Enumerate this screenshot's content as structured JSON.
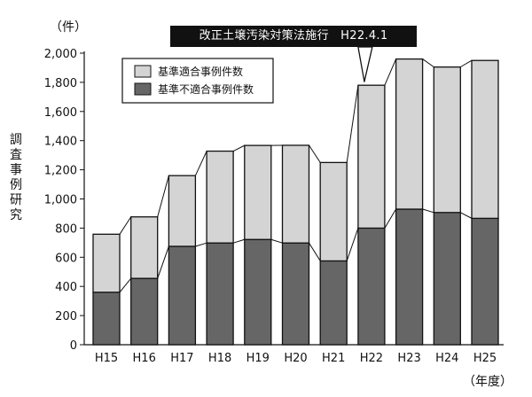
{
  "chart_data": {
    "type": "bar",
    "stacked": true,
    "categories": [
      "H15",
      "H16",
      "H17",
      "H18",
      "H19",
      "H20",
      "H21",
      "H22",
      "H23",
      "H24",
      "H25"
    ],
    "series": [
      {
        "name": "基準不適合事例件数",
        "values": [
          360,
          455,
          675,
          698,
          722,
          698,
          575,
          800,
          930,
          907,
          867
        ],
        "color": "#666666"
      },
      {
        "name": "基準適合事例件数",
        "values": [
          398,
          422,
          485,
          630,
          645,
          670,
          675,
          980,
          1030,
          998,
          1083
        ],
        "color": "#d4d4d4"
      }
    ],
    "ylim": [
      0,
      2000
    ],
    "yticks": [
      "0",
      "200",
      "400",
      "600",
      "800",
      "1,000",
      "1,200",
      "1,400",
      "1,600",
      "1,800",
      "2,000"
    ],
    "ylabel": "調査事例研究",
    "y_unit": "（件）",
    "x_unit": "（年度）",
    "grid": false,
    "legend_position": "top-left",
    "legend": [
      "基準適合事例件数",
      "基準不適合事例件数"
    ],
    "annotation": {
      "text": "改正土壌汚染対策法施行　H22.4.1",
      "points_to": "H22"
    }
  }
}
